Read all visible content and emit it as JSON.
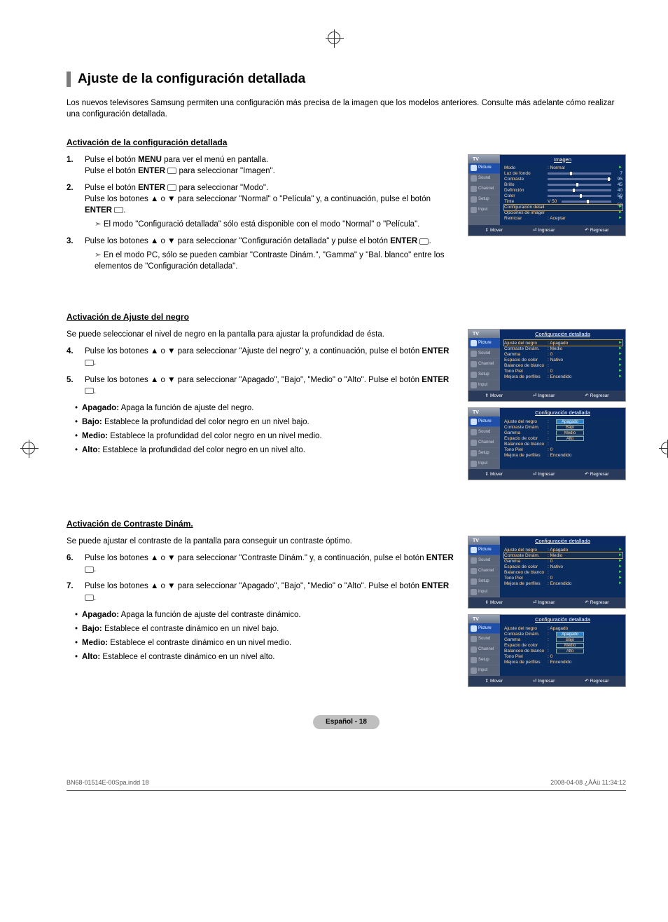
{
  "title": "Ajuste de la configuración detallada",
  "intro": "Los nuevos televisores Samsung permiten una configuración más precisa de la imagen que los modelos anteriores. Consulte más adelante cómo realizar una configuración detallada.",
  "sections": {
    "s1": {
      "heading": "Activación de la configuración detallada",
      "steps": [
        {
          "num": "1.",
          "html": "Pulse el botón <b>MENU</b> para ver el menú en pantalla.<br>Pulse el botón <b>ENTER</b>&nbsp;<span class='enter-icon'></span> para seleccionar \"Imagen\"."
        },
        {
          "num": "2.",
          "html": "Pulse el botón <b>ENTER</b>&nbsp;<span class='enter-icon'></span> para seleccionar \"Modo\".<br>Pulse los botones ▲ o ▼ para seleccionar \"Normal\" o \"Película\" y, a continuación, pulse el botón <b>ENTER</b>&nbsp;<span class='enter-icon'></span>.",
          "sub": "El modo \"Configuració detallada\" sólo está disponible con el modo \"Normal\" o \"Película\"."
        },
        {
          "num": "3.",
          "html": "Pulse los botones ▲ o ▼ para seleccionar \"Configuración detallada\" y pulse el botón <b>ENTER</b>&nbsp;<span class='enter-icon'></span>.",
          "sub": "En el modo PC, sólo se pueden cambiar \"Contraste Dinám.\", \"Gamma\" y \"Bal. blanco\" entre los elementos de \"Configuración detallada\"."
        }
      ]
    },
    "s2": {
      "heading": "Activación de Ajuste del negro",
      "desc": "Se puede seleccionar el nivel de negro en la pantalla para ajustar la profundidad de ésta.",
      "steps": [
        {
          "num": "4.",
          "html": "Pulse los botones ▲ o ▼ para seleccionar \"Ajuste del negro\" y, a continuación, pulse el botón <b>ENTER</b>&nbsp;<span class='enter-icon'></span>."
        },
        {
          "num": "5.",
          "html": "Pulse los botones ▲ o ▼ para seleccionar \"Apagado\", \"Bajo\", \"Medio\" o \"Alto\". Pulse el botón <b>ENTER</b>&nbsp;<span class='enter-icon'></span>."
        }
      ],
      "bullets": [
        {
          "b": "Apagado:",
          "t": " Apaga la función de ajuste del negro."
        },
        {
          "b": "Bajo:",
          "t": " Establece la profundidad del color negro en un nivel bajo."
        },
        {
          "b": "Medio:",
          "t": " Establece la profundidad del color negro en un nivel medio."
        },
        {
          "b": "Alto:",
          "t": " Establece la profundidad del color negro en un nivel alto."
        }
      ]
    },
    "s3": {
      "heading": "Activación de Contraste Dinám.",
      "desc": "Se puede ajustar el contraste de la pantalla para conseguir un contraste óptimo.",
      "steps": [
        {
          "num": "6.",
          "html": "Pulse los botones ▲ o ▼ para seleccionar \"Contraste Dinám.\" y, a continuación, pulse el botón <b>ENTER</b>&nbsp;<span class='enter-icon'></span>."
        },
        {
          "num": "7.",
          "html": "Pulse los botones ▲ o ▼ para seleccionar \"Apagado\", \"Bajo\", \"Medio\" o \"Alto\". Pulse el botón <b>ENTER</b>&nbsp;<span class='enter-icon'></span>."
        }
      ],
      "bullets": [
        {
          "b": "Apagado:",
          "t": " Apaga la función de ajuste del contraste dinámico."
        },
        {
          "b": "Bajo:",
          "t": " Establece el contraste dinámico en un nivel bajo."
        },
        {
          "b": "Medio:",
          "t": " Establece el contraste dinámico en un nivel medio."
        },
        {
          "b": "Alto:",
          "t": " Establece el contraste dinámico en un nivel alto."
        }
      ]
    }
  },
  "tv": {
    "corner": "TV",
    "side": [
      "Picture",
      "Sound",
      "Channel",
      "Setup",
      "Input"
    ],
    "foot": {
      "move": "Mover",
      "enter": "Ingresar",
      "ret": "Regresar"
    },
    "menu1": {
      "title": "Imagen",
      "rows": [
        {
          "label": "Modo",
          "val": ": Normal",
          "arrow": true
        },
        {
          "label": "Luz de fondo",
          "slider": 0.35,
          "num": "7"
        },
        {
          "label": "Contraste",
          "slider": 0.95,
          "num": "95"
        },
        {
          "label": "Brillo",
          "slider": 0.45,
          "num": "45"
        },
        {
          "label": "Definición",
          "slider": 0.4,
          "num": "40"
        },
        {
          "label": "Color",
          "slider": 0.5,
          "num": "50"
        },
        {
          "label": "Tinte",
          "val": "V 50",
          "slider": 0.5,
          "num": "R  50"
        },
        {
          "label": "Configuración detallada",
          "sel": true,
          "arrow": true
        },
        {
          "label": "Opciones de imagen",
          "arrow": true
        },
        {
          "label": "Reiniciar",
          "val": ": Aceptar",
          "arrow": true
        }
      ]
    },
    "menu2a": {
      "title": "Configuración detallada",
      "rows": [
        {
          "label": "Ajuste del negro",
          "val": ": Apagado",
          "sel": true,
          "arrow": true
        },
        {
          "label": "Contraste Dinám.",
          "val": ": Medio",
          "arrow": true
        },
        {
          "label": "Gamma",
          "val": ":  0",
          "arrow": true
        },
        {
          "label": "Espacio de color",
          "val": ": Nativo",
          "arrow": true
        },
        {
          "label": "Balanceo de blanco",
          "val": ":",
          "arrow": true
        },
        {
          "label": "Tono Piel",
          "val": ":  0",
          "arrow": true
        },
        {
          "label": "Mejora de perfiles",
          "val": ": Encendido",
          "arrow": true
        }
      ]
    },
    "menu2b": {
      "title": "Configuración detallada",
      "optrows": [
        {
          "label": "Ajuste del negro",
          "opt": "Apagado",
          "sel": true
        },
        {
          "label": "Contraste Dinám.",
          "opt": "Bajo"
        },
        {
          "label": "Gamma",
          "opt": "Medio"
        },
        {
          "label": "Espacio de color",
          "opt": "Alto"
        },
        {
          "label": "Balanceo de blanco",
          "val": ":"
        },
        {
          "label": "Tono Piel",
          "val": ":  0"
        },
        {
          "label": "Mejora de perfiles",
          "val": ": Encendido"
        }
      ]
    },
    "menu3a": {
      "title": "Configuración detallada",
      "rows": [
        {
          "label": "Ajuste del negro",
          "val": ": Apagado",
          "arrow": true
        },
        {
          "label": "Contraste Dinám.",
          "val": ": Medio",
          "sel": true,
          "arrow": true
        },
        {
          "label": "Gamma",
          "val": ":  0",
          "arrow": true
        },
        {
          "label": "Espacio de color",
          "val": ": Nativo",
          "arrow": true
        },
        {
          "label": "Balanceo de blanco",
          "val": ":",
          "arrow": true
        },
        {
          "label": "Tono Piel",
          "val": ":  0",
          "arrow": true
        },
        {
          "label": "Mejora de perfiles",
          "val": ": Encendido",
          "arrow": true
        }
      ]
    },
    "menu3b": {
      "title": "Configuración detallada",
      "optrows": [
        {
          "label": "Ajuste del negro",
          "val": ": Apagado"
        },
        {
          "label": "Contraste Dinám.",
          "opt": "Apagado",
          "sel": true
        },
        {
          "label": "Gamma",
          "opt": "Bajo"
        },
        {
          "label": "Espacio de color",
          "opt": "Medio"
        },
        {
          "label": "Balanceo de blanco",
          "opt": "Alto"
        },
        {
          "label": "Tono Piel",
          "val": ":  0"
        },
        {
          "label": "Mejora de perfiles",
          "val": ": Encendido"
        }
      ]
    }
  },
  "footerBadge": "Español - 18",
  "footerLeft": "BN68-01514E-00Spa.indd   18",
  "footerRight": "2008-04-08   ¿ÀÀü 11:34:12",
  "colors": {
    "titlebar": "#7a7a7a",
    "tvTitleBg": "#0b2a63",
    "tvSideBg": "#5a6478",
    "tvMainBg": "#0a2c5e",
    "tvFootBg": "#2a3a5a",
    "selBox": "#2a7fc9",
    "labelColor": "#ffd7a8"
  }
}
